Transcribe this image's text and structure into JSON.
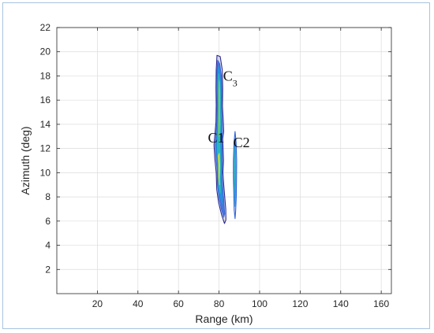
{
  "chart_data": {
    "type": "contour",
    "title": "",
    "xlabel": "Range (km)",
    "ylabel": "Azimuth (deg)",
    "xlim": [
      0,
      165
    ],
    "ylim": [
      0,
      22
    ],
    "xticks": [
      20,
      40,
      60,
      80,
      100,
      120,
      140,
      160
    ],
    "yticks": [
      2,
      4,
      6,
      8,
      10,
      12,
      14,
      16,
      18,
      20,
      22
    ],
    "grid": true,
    "colors": {
      "outer": "#2b2a8f",
      "level2": "#2f62d8",
      "level3": "#1f97dd",
      "level4": "#2cc0b0",
      "level5": "#8fd14f",
      "peak": "#f2e51f"
    },
    "annotations": [
      {
        "text": "C",
        "sub": "3",
        "x": 82,
        "y": 17.6
      },
      {
        "text": "C1",
        "sub": "",
        "x": 74.5,
        "y": 12.5
      },
      {
        "text": "C2",
        "sub": "",
        "x": 87,
        "y": 12.1
      }
    ],
    "clusters": [
      {
        "name": "C1-C3",
        "levels": [
          [
            [
              79.0,
              19.7
            ],
            [
              80.6,
              19.6
            ],
            [
              81.6,
              18.5
            ],
            [
              81.8,
              17.0
            ],
            [
              81.7,
              15.5
            ],
            [
              82.1,
              14.2
            ],
            [
              82.3,
              13.4
            ],
            [
              81.8,
              12.8
            ],
            [
              82.0,
              12.0
            ],
            [
              82.2,
              11.0
            ],
            [
              81.9,
              10.0
            ],
            [
              82.3,
              9.0
            ],
            [
              82.8,
              8.0
            ],
            [
              83.3,
              7.0
            ],
            [
              83.4,
              6.1
            ],
            [
              82.7,
              5.8
            ],
            [
              81.3,
              6.5
            ],
            [
              79.8,
              7.5
            ],
            [
              78.9,
              8.6
            ],
            [
              78.6,
              10.0
            ],
            [
              77.9,
              11.2
            ],
            [
              77.5,
              12.3
            ],
            [
              78.0,
              13.2
            ],
            [
              78.5,
              14.2
            ],
            [
              78.6,
              15.6
            ],
            [
              78.5,
              17.0
            ],
            [
              78.6,
              18.5
            ]
          ],
          [
            [
              79.3,
              19.3
            ],
            [
              80.4,
              19.0
            ],
            [
              81.2,
              18.0
            ],
            [
              81.4,
              16.6
            ],
            [
              81.3,
              15.3
            ],
            [
              81.6,
              14.1
            ],
            [
              81.7,
              13.3
            ],
            [
              81.4,
              12.7
            ],
            [
              81.6,
              11.8
            ],
            [
              81.7,
              10.7
            ],
            [
              81.5,
              9.7
            ],
            [
              81.9,
              8.7
            ],
            [
              82.4,
              7.7
            ],
            [
              82.8,
              6.6
            ],
            [
              82.3,
              6.3
            ],
            [
              81.1,
              7.0
            ],
            [
              79.9,
              8.0
            ],
            [
              79.2,
              9.0
            ],
            [
              79.0,
              10.3
            ],
            [
              78.4,
              11.4
            ],
            [
              78.1,
              12.3
            ],
            [
              78.5,
              13.2
            ],
            [
              78.9,
              14.2
            ],
            [
              79.0,
              15.6
            ],
            [
              78.9,
              17.1
            ],
            [
              79.0,
              18.5
            ]
          ],
          [
            [
              79.6,
              18.8
            ],
            [
              80.2,
              18.3
            ],
            [
              80.9,
              17.4
            ],
            [
              81.0,
              16.2
            ],
            [
              80.9,
              15.0
            ],
            [
              81.2,
              14.0
            ],
            [
              81.1,
              13.2
            ],
            [
              80.9,
              12.6
            ],
            [
              81.1,
              11.6
            ],
            [
              81.2,
              10.5
            ],
            [
              81.0,
              9.6
            ],
            [
              81.3,
              8.6
            ],
            [
              81.7,
              7.8
            ],
            [
              81.6,
              7.4
            ],
            [
              80.7,
              7.9
            ],
            [
              79.8,
              8.7
            ],
            [
              79.5,
              9.6
            ],
            [
              79.4,
              10.6
            ],
            [
              78.9,
              11.5
            ],
            [
              78.7,
              12.3
            ],
            [
              79.0,
              13.2
            ],
            [
              79.3,
              14.2
            ],
            [
              79.4,
              15.6
            ],
            [
              79.3,
              17.0
            ],
            [
              79.4,
              18.2
            ]
          ],
          [
            [
              79.8,
              18.2
            ],
            [
              80.4,
              17.4
            ],
            [
              80.6,
              16.2
            ],
            [
              80.5,
              15.0
            ],
            [
              80.7,
              14.0
            ],
            [
              80.5,
              13.3
            ],
            [
              80.4,
              12.6
            ],
            [
              80.6,
              11.5
            ],
            [
              80.7,
              10.4
            ],
            [
              80.5,
              9.5
            ],
            [
              80.7,
              8.7
            ],
            [
              80.6,
              8.3
            ],
            [
              80.0,
              8.9
            ],
            [
              79.8,
              9.8
            ],
            [
              79.7,
              10.7
            ],
            [
              79.3,
              11.6
            ],
            [
              79.2,
              12.3
            ],
            [
              79.5,
              13.2
            ],
            [
              79.7,
              14.2
            ],
            [
              79.8,
              15.5
            ],
            [
              79.7,
              16.8
            ]
          ],
          [
            [
              80.1,
              17.6
            ],
            [
              80.3,
              16.6
            ],
            [
              80.2,
              15.4
            ],
            [
              80.3,
              14.3
            ],
            [
              80.1,
              13.5
            ],
            [
              80.0,
              13.0
            ],
            [
              79.8,
              13.9
            ],
            [
              79.9,
              15.0
            ],
            [
              79.9,
              16.3
            ]
          ],
          [
            [
              80.1,
              11.6
            ],
            [
              80.3,
              10.6
            ],
            [
              80.1,
              9.5
            ],
            [
              80.2,
              9.0
            ],
            [
              79.9,
              9.6
            ],
            [
              79.9,
              10.6
            ],
            [
              79.7,
              11.4
            ]
          ]
        ]
      },
      {
        "name": "C2",
        "levels": [
          [
            [
              87.9,
              13.4
            ],
            [
              88.4,
              12.5
            ],
            [
              88.7,
              11.0
            ],
            [
              88.6,
              9.5
            ],
            [
              88.5,
              8.0
            ],
            [
              88.2,
              6.8
            ],
            [
              87.9,
              6.2
            ],
            [
              87.5,
              6.9
            ],
            [
              87.3,
              8.2
            ],
            [
              87.1,
              9.6
            ],
            [
              87.1,
              11.0
            ],
            [
              87.4,
              12.5
            ]
          ],
          [
            [
              87.9,
              12.8
            ],
            [
              88.2,
              11.8
            ],
            [
              88.3,
              10.5
            ],
            [
              88.2,
              9.2
            ],
            [
              88.1,
              8.0
            ],
            [
              87.9,
              7.2
            ],
            [
              87.7,
              8.0
            ],
            [
              87.5,
              9.2
            ],
            [
              87.5,
              10.5
            ],
            [
              87.6,
              11.8
            ]
          ],
          [
            [
              87.95,
              12.0
            ],
            [
              88.05,
              10.8
            ],
            [
              88.0,
              9.5
            ],
            [
              87.9,
              8.6
            ],
            [
              87.8,
              9.5
            ],
            [
              87.8,
              10.8
            ]
          ]
        ]
      }
    ]
  }
}
